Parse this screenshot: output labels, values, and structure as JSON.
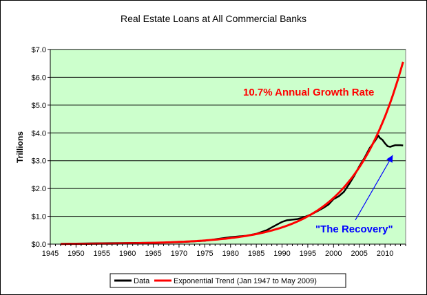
{
  "chart_data": {
    "type": "line",
    "title": "Real Estate Loans at All Commercial Banks",
    "ylabel": "Trillions",
    "xlabel": "",
    "xlim": [
      1945,
      2014
    ],
    "ylim": [
      0,
      7
    ],
    "x_ticks": [
      "1945",
      "1950",
      "1955",
      "1960",
      "1965",
      "1970",
      "1975",
      "1980",
      "1985",
      "1990",
      "1995",
      "2000",
      "2005",
      "2010"
    ],
    "y_ticks": [
      "$0.0",
      "$1.0",
      "$2.0",
      "$3.0",
      "$4.0",
      "$5.0",
      "$6.0",
      "$7.0"
    ],
    "grid": "horizontal",
    "plot_background": "#ccffcc",
    "legend_position": "bottom",
    "series": [
      {
        "name": "Data",
        "color": "#000000",
        "x": [
          1947,
          1950,
          1955,
          1960,
          1965,
          1970,
          1975,
          1980,
          1983,
          1985,
          1987,
          1988,
          1989,
          1990,
          1991,
          1992,
          1993,
          1994,
          1995,
          1996,
          1997,
          1998,
          1999,
          2000,
          2001,
          2002,
          2003,
          2004,
          2005,
          2006,
          2007,
          2008,
          2008.7,
          2009,
          2009.5,
          2010,
          2010.5,
          2011,
          2012,
          2013,
          2013.5
        ],
        "y": [
          0.01,
          0.02,
          0.03,
          0.04,
          0.05,
          0.07,
          0.12,
          0.25,
          0.3,
          0.37,
          0.5,
          0.6,
          0.7,
          0.8,
          0.86,
          0.88,
          0.9,
          0.95,
          1.02,
          1.1,
          1.2,
          1.3,
          1.42,
          1.62,
          1.72,
          1.88,
          2.15,
          2.45,
          2.8,
          3.1,
          3.45,
          3.7,
          3.9,
          3.82,
          3.75,
          3.62,
          3.52,
          3.5,
          3.56,
          3.56,
          3.55
        ]
      },
      {
        "name": "Exponential Trend (Jan 1947 to May 2009)",
        "color": "#ff0000",
        "model": "exponential",
        "x_start": 1947,
        "x_end": 2013.5,
        "value_at_1995": 1.0,
        "annual_growth_rate": 0.107
      }
    ],
    "annotations": [
      {
        "text": "10.7% Annual Growth Rate",
        "color": "#ff0000"
      },
      {
        "text": "\"The Recovery\"",
        "color": "#0000ff",
        "arrow_target": [
          2011.5,
          3.2
        ]
      }
    ]
  }
}
